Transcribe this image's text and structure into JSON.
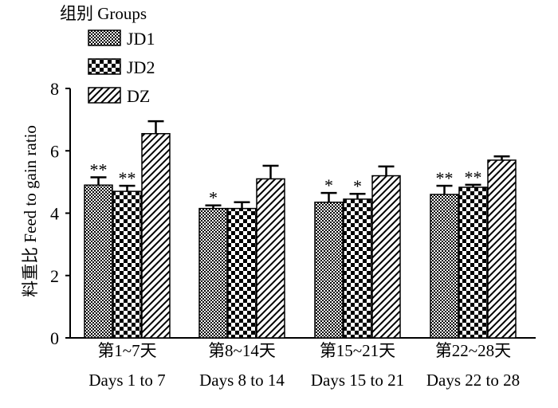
{
  "chart_data": {
    "type": "bar",
    "legend_title": "组别 Groups",
    "legend_position": "top-left",
    "ylabel": "料重比 Feed to gain ratio",
    "xlabel": "",
    "ylim": [
      0,
      8
    ],
    "yticks": [
      "0",
      "2",
      "4",
      "6",
      "8"
    ],
    "categories": [
      {
        "cn": "第1~7天",
        "en": "Days 1 to 7"
      },
      {
        "cn": "第8~14天",
        "en": "Days 8 to 14"
      },
      {
        "cn": "第15~21天",
        "en": "Days 15 to 21"
      },
      {
        "cn": "第22~28天",
        "en": "Days 22 to 28"
      }
    ],
    "series": [
      {
        "name": "JD1",
        "pattern": "dense-checker",
        "values": [
          4.9,
          4.15,
          4.35,
          4.6
        ],
        "errors": [
          0.25,
          0.1,
          0.3,
          0.28
        ],
        "significance": [
          "**",
          "*",
          "*",
          "**"
        ]
      },
      {
        "name": "JD2",
        "pattern": "coarse-checker",
        "values": [
          4.7,
          4.15,
          4.45,
          4.83
        ],
        "errors": [
          0.18,
          0.2,
          0.17,
          0.08
        ],
        "significance": [
          "**",
          "",
          "*",
          "**"
        ]
      },
      {
        "name": "DZ",
        "pattern": "diagonal-hatch",
        "values": [
          6.55,
          5.1,
          5.2,
          5.7
        ],
        "errors": [
          0.4,
          0.42,
          0.3,
          0.12
        ],
        "significance": [
          "",
          "",
          "",
          ""
        ]
      }
    ],
    "grid": false
  }
}
